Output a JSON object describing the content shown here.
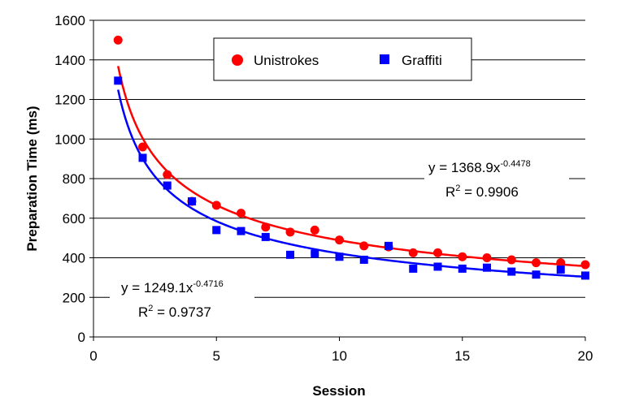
{
  "chart_data": {
    "type": "scatter",
    "title": "",
    "xlabel": "Session",
    "ylabel": "Preparation Time (ms)",
    "xlim": [
      0,
      20
    ],
    "ylim": [
      0,
      1600
    ],
    "x_ticks": [
      "0",
      "5",
      "10",
      "15",
      "20"
    ],
    "y_ticks": [
      "0",
      "200",
      "400",
      "600",
      "800",
      "1000",
      "1200",
      "1400",
      "1600"
    ],
    "grid": "horizontal",
    "legend_position": "top-center",
    "x": [
      1,
      2,
      3,
      4,
      5,
      6,
      7,
      8,
      9,
      10,
      11,
      12,
      13,
      14,
      15,
      16,
      17,
      18,
      19,
      20
    ],
    "series": [
      {
        "name": "Unistrokes",
        "color": "#ff0000",
        "marker": "circle",
        "values": [
          1500,
          960,
          820,
          685,
          665,
          625,
          555,
          530,
          540,
          490,
          460,
          455,
          425,
          425,
          405,
          400,
          390,
          375,
          375,
          365
        ],
        "trend": {
          "type": "power",
          "a": 1368.9,
          "b": -0.4478
        },
        "equation": {
          "lhs": "y = 1368.9x",
          "exponent": "-0.4478",
          "r2_label": "R",
          "r2_power": "2",
          "r2_value": " = 0.9906"
        }
      },
      {
        "name": "Graffiti",
        "color": "#0000ff",
        "marker": "square",
        "values": [
          1295,
          905,
          765,
          685,
          540,
          535,
          505,
          415,
          420,
          405,
          390,
          460,
          345,
          355,
          345,
          350,
          330,
          315,
          340,
          310
        ],
        "trend": {
          "type": "power",
          "a": 1249.1,
          "b": -0.4716
        },
        "equation": {
          "lhs": "y = 1249.1x",
          "exponent": "-0.4716",
          "r2_label": "R",
          "r2_power": "2",
          "r2_value": " = 0.9737"
        }
      }
    ]
  }
}
